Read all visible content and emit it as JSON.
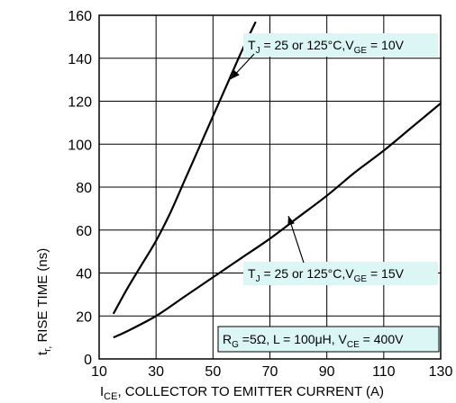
{
  "chart_data": {
    "type": "line",
    "xlabel": {
      "main": "I",
      "sub": "CE",
      "rest": ", COLLECTOR TO EMITTER CURRENT (A)"
    },
    "ylabel": {
      "main": "t",
      "sub": "r,",
      "rest": " RISE TIME (ns)"
    },
    "xlim": [
      10,
      130
    ],
    "ylim": [
      0,
      160
    ],
    "xticks": [
      10,
      30,
      50,
      70,
      90,
      110,
      130
    ],
    "yticks": [
      0,
      20,
      40,
      60,
      80,
      100,
      120,
      140,
      160
    ],
    "grid": true,
    "series": [
      {
        "x": [
          15,
          20,
          25,
          30,
          35,
          40,
          45,
          50,
          55,
          60,
          65
        ],
        "y": [
          21,
          33,
          44,
          55,
          68,
          83,
          98,
          113,
          128,
          143,
          157
        ]
      },
      {
        "x": [
          15,
          20,
          30,
          40,
          50,
          60,
          70,
          80,
          90,
          100,
          110,
          120,
          130
        ],
        "y": [
          10,
          13,
          20,
          29,
          38,
          47,
          56,
          66,
          76,
          87,
          97,
          108,
          119
        ]
      }
    ],
    "annotations": [
      {
        "text_parts": [
          "T",
          "J",
          " = 25 or 125°C,V",
          "GE",
          " = 10V"
        ],
        "series": 0
      },
      {
        "text_parts": [
          "T",
          "J",
          " = 25 or 125°C,V",
          "GE",
          " = 15V"
        ],
        "series": 1
      },
      {
        "text_parts": [
          "R",
          "G",
          " =5Ω, L = 100μH, V",
          "CE",
          " = 400V"
        ]
      }
    ]
  }
}
